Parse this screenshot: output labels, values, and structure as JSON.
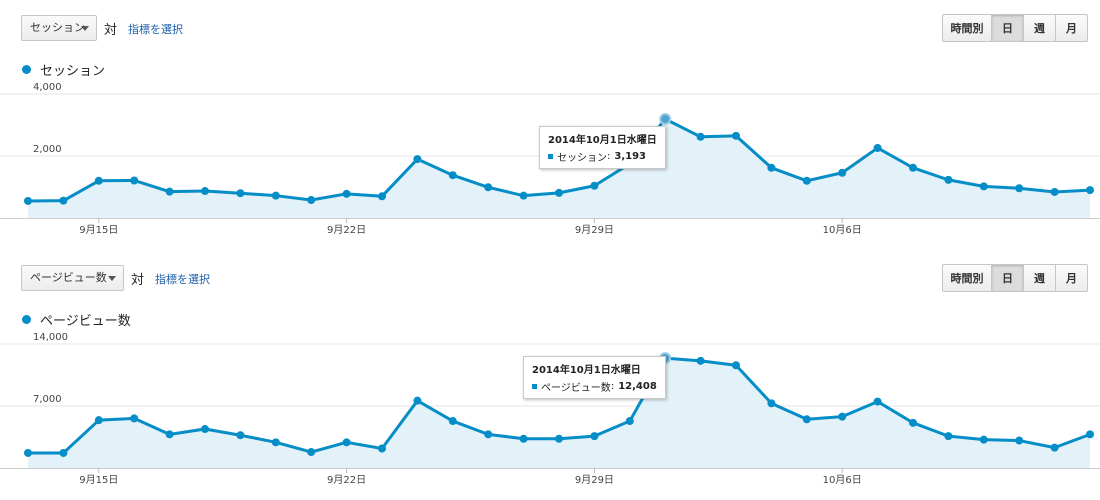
{
  "buttons": {
    "hourly": "時間別",
    "day": "日",
    "week": "週",
    "month": "月",
    "active": "day"
  },
  "vs_label": "対",
  "select_metric_link": "指標を選択",
  "accent": "#058dc7",
  "fill": "#e3f1f9",
  "chart_data": [
    {
      "type": "area",
      "metric_select": "セッション",
      "legend": "セッション",
      "ylim": [
        0,
        4000
      ],
      "y_ticks": [
        {
          "value": 2000,
          "label": "2,000"
        },
        {
          "value": 4000,
          "label": "4,000"
        }
      ],
      "x_ticks": [
        {
          "label": "9月15日",
          "index": 2
        },
        {
          "label": "9月22日",
          "index": 9
        },
        {
          "label": "9月29日",
          "index": 16
        },
        {
          "label": "10月6日",
          "index": 23
        }
      ],
      "x_domain": [
        0,
        30
      ],
      "values": [
        550,
        560,
        1200,
        1210,
        850,
        870,
        800,
        720,
        580,
        780,
        700,
        1900,
        1380,
        990,
        720,
        810,
        1040,
        1750,
        3193,
        2620,
        2650,
        1620,
        1200,
        1460,
        2260,
        1620,
        1230,
        1020,
        960,
        840,
        900
      ],
      "tooltip": {
        "index": 18,
        "date": "2014年10月1日水曜日",
        "series": "セッション",
        "value": "3,193"
      }
    },
    {
      "type": "area",
      "metric_select": "ページビュー数",
      "legend": "ページビュー数",
      "ylim": [
        0,
        14000
      ],
      "y_ticks": [
        {
          "value": 7000,
          "label": "7,000"
        },
        {
          "value": 14000,
          "label": "14,000"
        }
      ],
      "x_ticks": [
        {
          "label": "9月15日",
          "index": 2
        },
        {
          "label": "9月22日",
          "index": 9
        },
        {
          "label": "9月29日",
          "index": 16
        },
        {
          "label": "10月6日",
          "index": 23
        }
      ],
      "x_domain": [
        0,
        30
      ],
      "values": [
        1700,
        1700,
        5400,
        5600,
        3800,
        4400,
        3700,
        2900,
        1800,
        2900,
        2200,
        7600,
        5300,
        3800,
        3300,
        3300,
        3600,
        5300,
        12408,
        12100,
        11600,
        7300,
        5500,
        5800,
        7500,
        5100,
        3600,
        3200,
        3100,
        2300,
        3800
      ],
      "tooltip": {
        "index": 18,
        "date": "2014年10月1日水曜日",
        "series": "ページビュー数",
        "value": "12,408"
      }
    }
  ]
}
